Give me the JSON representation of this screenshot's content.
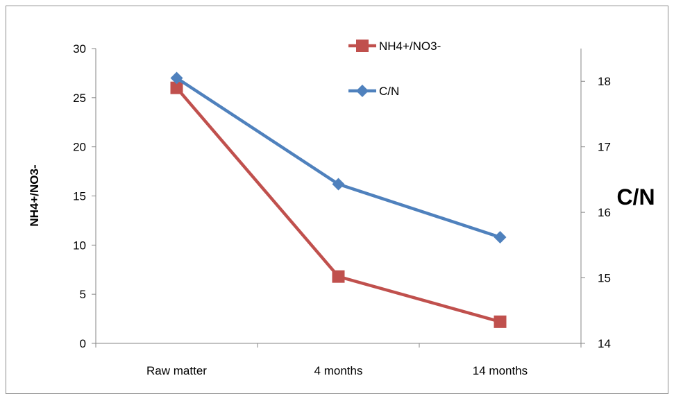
{
  "chart_data": {
    "type": "line",
    "categories": [
      "Raw matter",
      "4 months",
      "14 months"
    ],
    "series": [
      {
        "name": "NH4+/NO3-",
        "axis": "left",
        "values": [
          26,
          6.8,
          2.2
        ],
        "color": "#c0504d",
        "marker": "square"
      },
      {
        "name": "C/N",
        "axis": "right",
        "values": [
          18.05,
          16.43,
          15.62
        ],
        "color": "#4f81bd",
        "marker": "diamond"
      }
    ],
    "ylabel": "NH4+/NO3-",
    "ylabel_right": "C/N",
    "ylim": [
      0,
      30
    ],
    "ylim_right": [
      14,
      18.5
    ],
    "yticks": [
      0,
      5,
      10,
      15,
      20,
      25,
      30
    ],
    "yticks_right": [
      14,
      15,
      16,
      17,
      18
    ],
    "grid": false,
    "legend_position": "top-center"
  }
}
